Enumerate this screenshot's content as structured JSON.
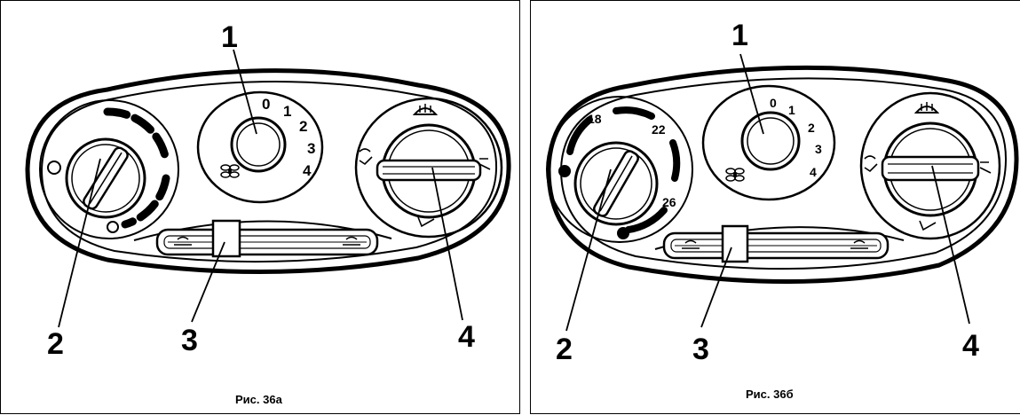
{
  "figure_a": {
    "caption": "Рис. 36а",
    "callouts": [
      "1",
      "2",
      "3",
      "4"
    ],
    "fan_scale": [
      "0",
      "1",
      "2",
      "3",
      "4"
    ]
  },
  "figure_b": {
    "caption": "Рис. 36б",
    "callouts": [
      "1",
      "2",
      "3",
      "4"
    ],
    "fan_scale": [
      "0",
      "1",
      "2",
      "3",
      "4"
    ],
    "temperature_scale": [
      "18",
      "22",
      "26"
    ]
  },
  "icons": [
    "fan-icon",
    "defrost-icon",
    "face-vent-icon",
    "floor-vent-icon",
    "recirculation-icon"
  ]
}
